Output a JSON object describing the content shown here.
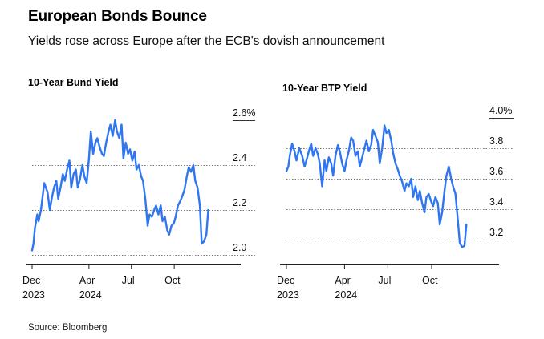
{
  "header": {
    "title": "European Bonds Bounce",
    "subtitle": "Yields rose across Europe after the ECB's dovish announcement"
  },
  "footer": {
    "source": "Source: Bloomberg"
  },
  "colors": {
    "line": "#2f76f0"
  },
  "chart_data": [
    {
      "type": "line",
      "title": "10-Year Bund Yield",
      "unit": "%",
      "x_tick_labels": [
        {
          "date": "2023-12-01",
          "lines": [
            "Dec",
            "2023"
          ]
        },
        {
          "date": "2024-04-01",
          "lines": [
            "Apr",
            "2024"
          ]
        },
        {
          "date": "2024-07-01",
          "lines": [
            "Jul",
            ""
          ]
        },
        {
          "date": "2024-10-01",
          "lines": [
            "Oct",
            ""
          ]
        }
      ],
      "xlim": [
        "2023-12-01",
        "2024-12-31"
      ],
      "ylim": [
        2.0,
        2.6
      ],
      "y_ticks": [
        2.0,
        2.2,
        2.4,
        2.6
      ],
      "y_tick_labels": [
        "2.0",
        "2.2",
        "2.4",
        "2.6%"
      ],
      "grid": true,
      "series": [
        {
          "x": [
            "2023-12-01",
            "2023-12-04",
            "2023-12-07",
            "2023-12-12",
            "2023-12-15",
            "2023-12-20",
            "2023-12-27",
            "2024-01-03",
            "2024-01-08",
            "2024-01-12",
            "2024-01-17",
            "2024-01-22",
            "2024-01-26",
            "2024-01-31",
            "2024-02-05",
            "2024-02-09",
            "2024-02-14",
            "2024-02-19",
            "2024-02-23",
            "2024-02-28",
            "2024-03-04",
            "2024-03-08",
            "2024-03-13",
            "2024-03-18",
            "2024-03-22",
            "2024-03-27",
            "2024-04-01",
            "2024-04-05",
            "2024-04-10",
            "2024-04-15",
            "2024-04-19",
            "2024-04-24",
            "2024-04-29",
            "2024-05-03",
            "2024-05-08",
            "2024-05-13",
            "2024-05-17",
            "2024-05-22",
            "2024-05-27",
            "2024-05-31",
            "2024-06-05",
            "2024-06-10",
            "2024-06-14",
            "2024-06-19",
            "2024-06-24",
            "2024-06-28",
            "2024-07-03",
            "2024-07-08",
            "2024-07-12",
            "2024-07-17",
            "2024-07-22",
            "2024-07-26",
            "2024-07-31",
            "2024-08-05",
            "2024-08-09",
            "2024-08-14",
            "2024-08-19",
            "2024-08-23",
            "2024-08-28",
            "2024-09-02",
            "2024-09-06",
            "2024-09-11",
            "2024-09-16",
            "2024-09-20",
            "2024-09-25",
            "2024-09-30",
            "2024-10-04",
            "2024-10-09",
            "2024-10-14",
            "2024-10-18",
            "2024-10-23",
            "2024-10-28",
            "2024-11-01",
            "2024-11-06",
            "2024-11-11",
            "2024-11-15",
            "2024-11-20",
            "2024-11-25",
            "2024-11-29",
            "2024-12-04",
            "2024-12-09",
            "2024-12-13"
          ],
          "values": [
            2.02,
            2.05,
            2.12,
            2.18,
            2.15,
            2.2,
            2.32,
            2.28,
            2.2,
            2.25,
            2.3,
            2.33,
            2.25,
            2.3,
            2.36,
            2.33,
            2.38,
            2.42,
            2.3,
            2.36,
            2.38,
            2.3,
            2.34,
            2.4,
            2.35,
            2.32,
            2.43,
            2.55,
            2.45,
            2.5,
            2.52,
            2.48,
            2.45,
            2.44,
            2.5,
            2.55,
            2.58,
            2.53,
            2.6,
            2.55,
            2.52,
            2.58,
            2.43,
            2.5,
            2.45,
            2.47,
            2.42,
            2.46,
            2.38,
            2.4,
            2.35,
            2.33,
            2.25,
            2.13,
            2.18,
            2.17,
            2.2,
            2.22,
            2.18,
            2.22,
            2.15,
            2.17,
            2.11,
            2.09,
            2.13,
            2.14,
            2.17,
            2.22,
            2.24,
            2.26,
            2.29,
            2.35,
            2.39,
            2.37,
            2.4,
            2.33,
            2.3,
            2.22,
            2.05,
            2.06,
            2.09,
            2.2
          ]
        }
      ]
    },
    {
      "type": "line",
      "title": "10-Year BTP Yield",
      "unit": "%",
      "x_tick_labels": [
        {
          "date": "2023-12-01",
          "lines": [
            "Dec",
            "2023"
          ]
        },
        {
          "date": "2024-04-01",
          "lines": [
            "Apr",
            "2024"
          ]
        },
        {
          "date": "2024-07-01",
          "lines": [
            "Jul",
            ""
          ]
        },
        {
          "date": "2024-10-01",
          "lines": [
            "Oct",
            ""
          ]
        }
      ],
      "xlim": [
        "2023-12-01",
        "2024-12-31"
      ],
      "ylim": [
        3.1,
        4.0
      ],
      "y_ticks": [
        3.2,
        3.4,
        3.6,
        3.8,
        4.0
      ],
      "y_tick_labels": [
        "3.2",
        "3.4",
        "3.6",
        "3.8",
        "4.0%"
      ],
      "grid": true,
      "series": [
        {
          "x": [
            "2023-12-01",
            "2023-12-05",
            "2023-12-08",
            "2023-12-13",
            "2023-12-18",
            "2023-12-22",
            "2023-12-28",
            "2024-01-03",
            "2024-01-08",
            "2024-01-12",
            "2024-01-17",
            "2024-01-22",
            "2024-01-26",
            "2024-01-31",
            "2024-02-05",
            "2024-02-09",
            "2024-02-14",
            "2024-02-19",
            "2024-02-23",
            "2024-02-28",
            "2024-03-04",
            "2024-03-08",
            "2024-03-13",
            "2024-03-18",
            "2024-03-22",
            "2024-03-27",
            "2024-04-01",
            "2024-04-05",
            "2024-04-10",
            "2024-04-15",
            "2024-04-19",
            "2024-04-24",
            "2024-04-29",
            "2024-05-03",
            "2024-05-08",
            "2024-05-13",
            "2024-05-17",
            "2024-05-22",
            "2024-05-27",
            "2024-05-31",
            "2024-06-05",
            "2024-06-10",
            "2024-06-14",
            "2024-06-19",
            "2024-06-24",
            "2024-06-28",
            "2024-07-03",
            "2024-07-08",
            "2024-07-12",
            "2024-07-17",
            "2024-07-22",
            "2024-07-26",
            "2024-07-31",
            "2024-08-05",
            "2024-08-09",
            "2024-08-14",
            "2024-08-19",
            "2024-08-23",
            "2024-08-28",
            "2024-09-02",
            "2024-09-06",
            "2024-09-11",
            "2024-09-16",
            "2024-09-20",
            "2024-09-25",
            "2024-09-30",
            "2024-10-04",
            "2024-10-09",
            "2024-10-14",
            "2024-10-18",
            "2024-10-23",
            "2024-10-28",
            "2024-11-01",
            "2024-11-06",
            "2024-11-11",
            "2024-11-15",
            "2024-11-20",
            "2024-11-25",
            "2024-11-29",
            "2024-12-04",
            "2024-12-09",
            "2024-12-13"
          ],
          "values": [
            3.65,
            3.68,
            3.75,
            3.83,
            3.78,
            3.72,
            3.8,
            3.75,
            3.68,
            3.72,
            3.78,
            3.83,
            3.75,
            3.8,
            3.76,
            3.7,
            3.55,
            3.72,
            3.65,
            3.74,
            3.7,
            3.62,
            3.75,
            3.82,
            3.78,
            3.7,
            3.65,
            3.72,
            3.78,
            3.87,
            3.85,
            3.75,
            3.78,
            3.68,
            3.74,
            3.8,
            3.85,
            3.78,
            3.82,
            3.92,
            3.88,
            3.84,
            3.7,
            3.8,
            3.95,
            3.9,
            3.92,
            3.85,
            3.77,
            3.7,
            3.66,
            3.62,
            3.58,
            3.52,
            3.57,
            3.55,
            3.6,
            3.48,
            3.55,
            3.46,
            3.52,
            3.44,
            3.38,
            3.48,
            3.5,
            3.45,
            3.42,
            3.48,
            3.44,
            3.3,
            3.38,
            3.52,
            3.62,
            3.68,
            3.6,
            3.55,
            3.5,
            3.33,
            3.18,
            3.15,
            3.16,
            3.3
          ]
        }
      ]
    }
  ]
}
